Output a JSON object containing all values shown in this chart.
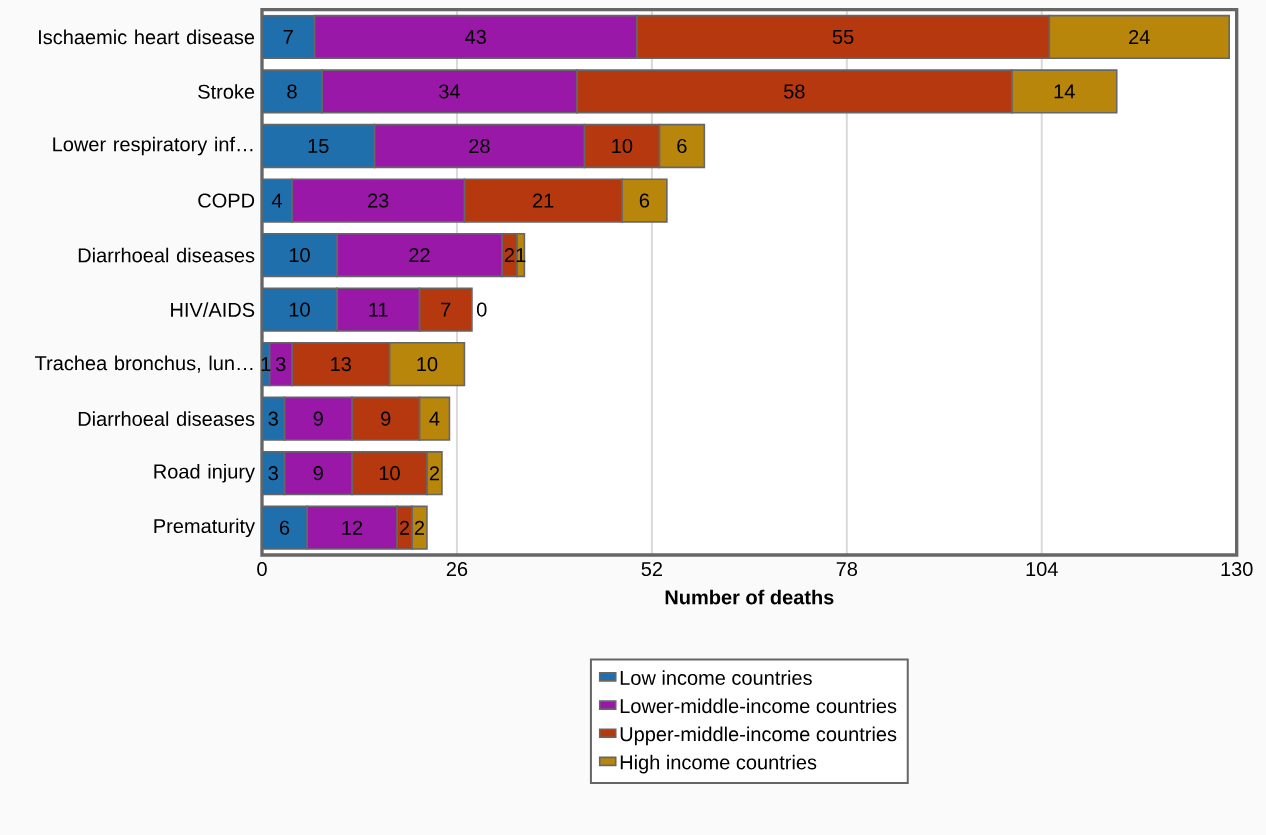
{
  "chart_data": {
    "type": "bar",
    "orientation": "horizontal",
    "stacked": true,
    "xlabel": "Number of deaths",
    "categories": [
      "Ischaemic heart disease",
      "Stroke",
      "Lower respiratory inf…",
      "COPD",
      "Diarrhoeal diseases",
      "HIV/AIDS",
      "Trachea bronchus, lun…",
      "Diarrhoeal diseases",
      "Road injury",
      "Prematurity"
    ],
    "series": [
      {
        "name": "Low income countries",
        "color": "#1f6fad",
        "values": [
          7,
          8,
          15,
          4,
          10,
          10,
          1,
          3,
          3,
          6
        ]
      },
      {
        "name": "Lower-middle-income countries",
        "color": "#9a18a8",
        "values": [
          43,
          34,
          28,
          23,
          22,
          11,
          3,
          9,
          9,
          12
        ]
      },
      {
        "name": "Upper-middle-income countries",
        "color": "#b5380f",
        "values": [
          55,
          58,
          10,
          21,
          2,
          7,
          13,
          9,
          10,
          2
        ]
      },
      {
        "name": "High income countries",
        "color": "#b8860b",
        "values": [
          24,
          14,
          6,
          6,
          1,
          0,
          10,
          4,
          2,
          2
        ]
      }
    ],
    "xlim": [
      0,
      130
    ],
    "xticks": [
      0,
      26,
      52,
      78,
      104,
      130
    ],
    "grid": "x",
    "legend": "bottom",
    "data_labels": true
  }
}
